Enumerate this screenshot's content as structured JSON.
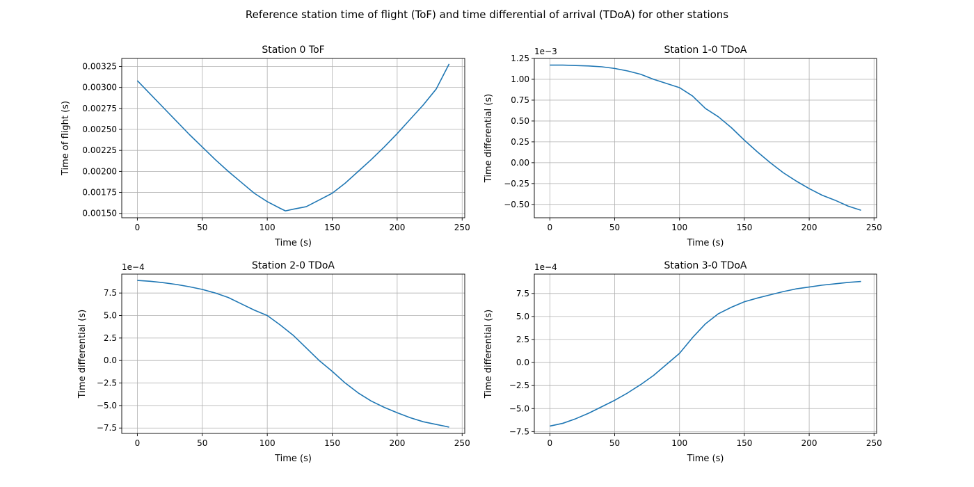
{
  "figure": {
    "suptitle": "Reference station time of flight (ToF) and time differential of arrival (TDoA) for other stations",
    "line_color": "#1f77b4",
    "grid_color": "#b0b0b0"
  },
  "chart_data": [
    {
      "type": "line",
      "title": "Station 0 ToF",
      "xlabel": "Time (s)",
      "ylabel": "Time of flight (s)",
      "offset_text": "",
      "xlim": [
        -12,
        252
      ],
      "ylim": [
        0.001448,
        0.003345
      ],
      "xticks": [
        0,
        50,
        100,
        150,
        200,
        250
      ],
      "xtick_labels": [
        "0",
        "50",
        "100",
        "150",
        "200",
        "250"
      ],
      "yticks": [
        0.0015,
        0.00175,
        0.002,
        0.00225,
        0.0025,
        0.00275,
        0.003,
        0.00325
      ],
      "ytick_labels": [
        "0.00150",
        "0.00175",
        "0.00200",
        "0.00225",
        "0.00250",
        "0.00275",
        "0.00300",
        "0.00325"
      ],
      "grid": true,
      "series": [
        {
          "x": [
            0,
            10,
            20,
            30,
            40,
            50,
            60,
            70,
            80,
            90,
            100,
            110,
            114,
            120,
            130,
            140,
            150,
            160,
            170,
            180,
            190,
            200,
            210,
            220,
            230,
            240
          ],
          "y": [
            0.00308,
            0.00292,
            0.00276,
            0.0026,
            0.00244,
            0.00229,
            0.00214,
            0.002,
            0.00187,
            0.00174,
            0.00164,
            0.00156,
            0.00153,
            0.00155,
            0.00158,
            0.00166,
            0.00174,
            0.00186,
            0.002,
            0.00214,
            0.00229,
            0.00245,
            0.00262,
            0.00279,
            0.00298,
            0.00328
          ]
        }
      ]
    },
    {
      "type": "line",
      "title": "Station 1-0 TDoA",
      "xlabel": "Time (s)",
      "ylabel": "Time differential (s)",
      "offset_text": "1e−3",
      "xlim": [
        -12,
        252
      ],
      "ylim": [
        -0.66,
        1.25
      ],
      "xticks": [
        0,
        50,
        100,
        150,
        200,
        250
      ],
      "xtick_labels": [
        "0",
        "50",
        "100",
        "150",
        "200",
        "250"
      ],
      "yticks": [
        -0.5,
        -0.25,
        0,
        0.25,
        0.5,
        0.75,
        1.0,
        1.25
      ],
      "ytick_labels": [
        "−0.50",
        "−0.25",
        "0.00",
        "0.25",
        "0.50",
        "0.75",
        "1.00",
        "1.25"
      ],
      "grid": true,
      "series": [
        {
          "x": [
            0,
            10,
            20,
            30,
            40,
            50,
            60,
            70,
            80,
            90,
            100,
            110,
            120,
            130,
            140,
            150,
            160,
            170,
            180,
            190,
            200,
            210,
            220,
            230,
            240
          ],
          "y": [
            1.17,
            1.17,
            1.165,
            1.16,
            1.15,
            1.13,
            1.1,
            1.06,
            1.0,
            0.95,
            0.9,
            0.8,
            0.65,
            0.55,
            0.42,
            0.27,
            0.13,
            0.0,
            -0.12,
            -0.22,
            -0.31,
            -0.39,
            -0.45,
            -0.52,
            -0.57
          ]
        }
      ]
    },
    {
      "type": "line",
      "title": "Station 2-0 TDoA",
      "xlabel": "Time (s)",
      "ylabel": "Time differential (s)",
      "offset_text": "1e−4",
      "xlim": [
        -12,
        252
      ],
      "ylim": [
        -8.1,
        9.6
      ],
      "xticks": [
        0,
        50,
        100,
        150,
        200,
        250
      ],
      "xtick_labels": [
        "0",
        "50",
        "100",
        "150",
        "200",
        "250"
      ],
      "yticks": [
        -7.5,
        -5,
        -2.5,
        0,
        2.5,
        5,
        7.5
      ],
      "ytick_labels": [
        "−7.5",
        "−5.0",
        "−2.5",
        "0.0",
        "2.5",
        "5.0",
        "7.5"
      ],
      "grid": true,
      "series": [
        {
          "x": [
            0,
            10,
            20,
            30,
            40,
            50,
            60,
            70,
            80,
            90,
            100,
            110,
            120,
            130,
            140,
            150,
            160,
            170,
            180,
            190,
            200,
            210,
            220,
            230,
            240
          ],
          "y": [
            8.9,
            8.8,
            8.65,
            8.45,
            8.2,
            7.9,
            7.5,
            7.0,
            6.3,
            5.6,
            5.0,
            3.95,
            2.8,
            1.4,
            0.0,
            -1.2,
            -2.5,
            -3.6,
            -4.5,
            -5.2,
            -5.8,
            -6.35,
            -6.8,
            -7.1,
            -7.4
          ]
        }
      ]
    },
    {
      "type": "line",
      "title": "Station 3-0 TDoA",
      "xlabel": "Time (s)",
      "ylabel": "Time differential (s)",
      "offset_text": "1e−4",
      "xlim": [
        -12,
        252
      ],
      "ylim": [
        -7.7,
        9.6
      ],
      "xticks": [
        0,
        50,
        100,
        150,
        200,
        250
      ],
      "xtick_labels": [
        "0",
        "50",
        "100",
        "150",
        "200",
        "250"
      ],
      "yticks": [
        -7.5,
        -5,
        -2.5,
        0,
        2.5,
        5,
        7.5
      ],
      "ytick_labels": [
        "−7.5",
        "−5.0",
        "−2.5",
        "0.0",
        "2.5",
        "5.0",
        "7.5"
      ],
      "grid": true,
      "series": [
        {
          "x": [
            0,
            10,
            20,
            30,
            40,
            50,
            60,
            70,
            80,
            90,
            100,
            110,
            120,
            130,
            140,
            150,
            160,
            170,
            180,
            190,
            200,
            210,
            220,
            230,
            240
          ],
          "y": [
            -6.9,
            -6.6,
            -6.1,
            -5.5,
            -4.8,
            -4.1,
            -3.3,
            -2.4,
            -1.4,
            -0.2,
            1.0,
            2.7,
            4.2,
            5.3,
            6.0,
            6.6,
            7.0,
            7.35,
            7.7,
            8.0,
            8.2,
            8.4,
            8.55,
            8.7,
            8.8
          ]
        }
      ]
    }
  ]
}
